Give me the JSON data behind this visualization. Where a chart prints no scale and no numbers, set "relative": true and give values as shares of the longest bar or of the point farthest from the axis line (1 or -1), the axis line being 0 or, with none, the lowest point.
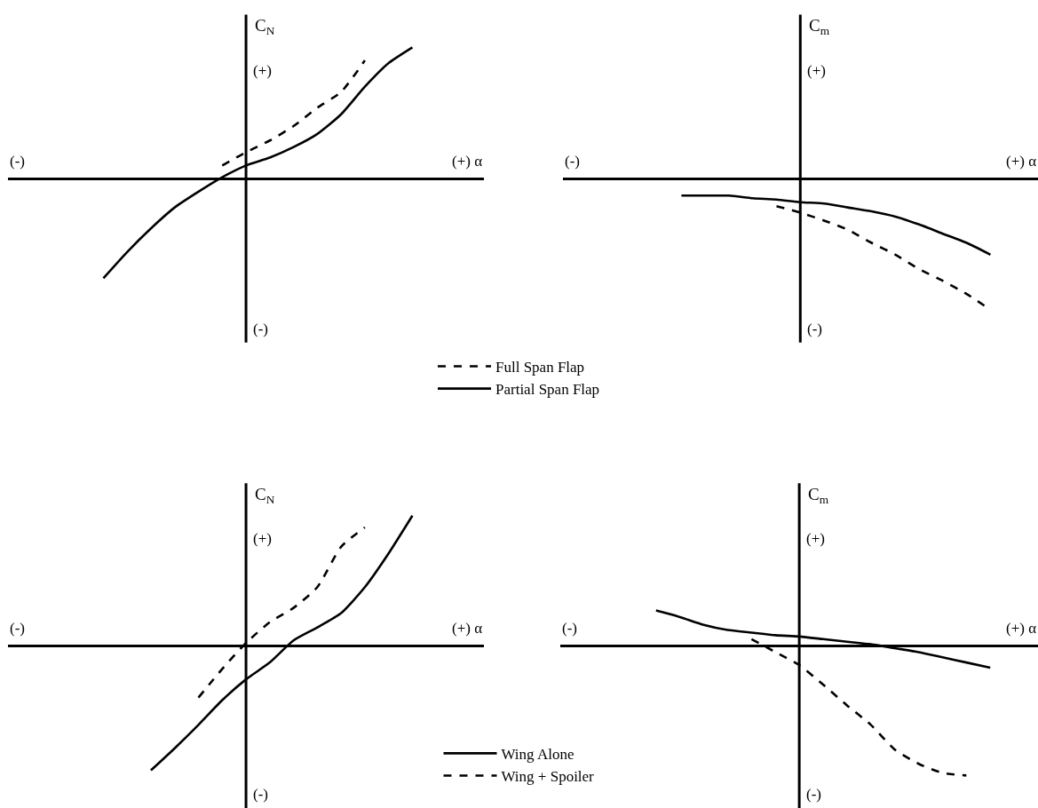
{
  "chart_data": [
    {
      "type": "line",
      "relative": true,
      "xlabel": "(+) α",
      "ylabel": "C$_{N}$",
      "annotations": [
        "(-)",
        "(+)",
        "(-)"
      ],
      "legend": "bottom",
      "categories": [
        null,
        null,
        null,
        null,
        null,
        null,
        null,
        null,
        null,
        null,
        null,
        null,
        null,
        null,
        null,
        null,
        null,
        null,
        null,
        null,
        null
      ],
      "series": [
        {
          "name": "Full Span Flap",
          "color": "#000000",
          "line_style": "dashed",
          "values": [
            null,
            null,
            null,
            null,
            null,
            null,
            null,
            null,
            null,
            0.1,
            0.2,
            0.29,
            0.4,
            0.54,
            0.66,
            0.9,
            null,
            null,
            null,
            null,
            null
          ]
        },
        {
          "name": "Partial Span Flap",
          "color": "#000000",
          "line_style": "solid",
          "values": [
            null,
            null,
            null,
            null,
            -0.76,
            -0.56,
            -0.38,
            -0.22,
            -0.1,
            0.01,
            0.1,
            0.16,
            0.24,
            0.34,
            0.49,
            0.7,
            0.88,
            1.0,
            null,
            null,
            null
          ]
        }
      ]
    },
    {
      "type": "line",
      "relative": true,
      "xlabel": "(+) α",
      "ylabel": "C$_{m}$",
      "annotations": [
        "(-)",
        "(+)",
        "(-)"
      ],
      "legend": "bottom",
      "categories": [
        null,
        null,
        null,
        null,
        null,
        null,
        null,
        null,
        null,
        null,
        null,
        null,
        null,
        null,
        null,
        null,
        null,
        null,
        null,
        null,
        null
      ],
      "series": [
        {
          "name": "Full Span Flap",
          "color": "#000000",
          "line_style": "dashed",
          "values": [
            null,
            null,
            null,
            null,
            null,
            null,
            null,
            null,
            null,
            -0.21,
            -0.26,
            -0.32,
            -0.39,
            -0.49,
            -0.58,
            -0.69,
            -0.78,
            -0.88,
            -1.0,
            null,
            null
          ]
        },
        {
          "name": "Partial Span Flap",
          "color": "#000000",
          "line_style": "solid",
          "values": [
            null,
            null,
            null,
            null,
            null,
            -0.13,
            -0.13,
            -0.13,
            -0.15,
            -0.16,
            -0.18,
            -0.19,
            -0.22,
            -0.25,
            -0.29,
            -0.35,
            -0.42,
            -0.49,
            -0.58,
            null,
            null
          ]
        }
      ]
    },
    {
      "type": "line",
      "relative": true,
      "xlabel": "(+) α",
      "ylabel": "C$_{N}$",
      "annotations": [
        "(-)",
        "(+)",
        "(-)"
      ],
      "legend": "bottom",
      "categories": [
        null,
        null,
        null,
        null,
        null,
        null,
        null,
        null,
        null,
        null,
        null,
        null,
        null,
        null,
        null,
        null,
        null,
        null,
        null,
        null,
        null
      ],
      "series": [
        {
          "name": "Wing Alone",
          "color": "#000000",
          "line_style": "solid",
          "values": [
            null,
            null,
            null,
            null,
            null,
            null,
            -0.96,
            -0.79,
            -0.61,
            -0.42,
            -0.26,
            -0.13,
            0.04,
            0.14,
            0.25,
            0.45,
            0.71,
            1.0,
            null,
            null,
            null
          ]
        },
        {
          "name": "Wing + Spoiler",
          "color": "#000000",
          "line_style": "dashed",
          "values": [
            null,
            null,
            null,
            null,
            null,
            null,
            null,
            null,
            -0.4,
            -0.18,
            0.02,
            0.18,
            0.29,
            0.45,
            0.76,
            0.91,
            null,
            null,
            null,
            null,
            null
          ]
        }
      ]
    },
    {
      "type": "line",
      "relative": true,
      "xlabel": "(+) α",
      "ylabel": "C$_{m}$",
      "annotations": [
        "(-)",
        "(+)",
        "(-)"
      ],
      "legend": "bottom",
      "categories": [
        null,
        null,
        null,
        null,
        null,
        null,
        null,
        null,
        null,
        null,
        null,
        null,
        null,
        null,
        null,
        null,
        null,
        null,
        null,
        null,
        null
      ],
      "series": [
        {
          "name": "Wing Alone",
          "color": "#000000",
          "line_style": "solid",
          "values": [
            null,
            null,
            null,
            null,
            0.27,
            0.22,
            0.16,
            0.12,
            0.1,
            0.08,
            0.07,
            0.05,
            0.03,
            0.01,
            -0.02,
            -0.05,
            -0.09,
            -0.13,
            -0.17,
            null,
            null
          ]
        },
        {
          "name": "Wing + Spoiler",
          "color": "#000000",
          "line_style": "dashed",
          "values": [
            null,
            null,
            null,
            null,
            null,
            null,
            null,
            null,
            0.05,
            -0.05,
            -0.15,
            -0.3,
            -0.46,
            -0.61,
            -0.8,
            -0.91,
            -0.98,
            -1.0,
            null,
            null,
            null
          ]
        }
      ]
    }
  ]
}
